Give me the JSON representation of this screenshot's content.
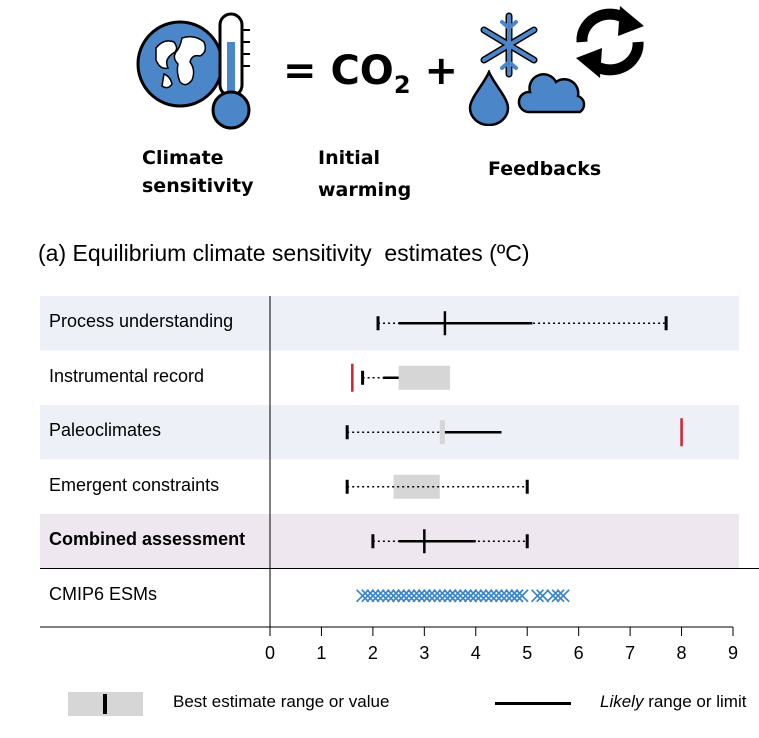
{
  "header": {
    "equals_co2_plus": "= CO",
    "subscript": "2",
    "plus": " +",
    "label_climate": "Climate",
    "label_sensitivity": "sensitivity",
    "label_initial": "Initial",
    "label_warming": "warming",
    "label_feedbacks": "Feedbacks"
  },
  "icons": {
    "globe_thermometer": "globe-thermometer-icon",
    "water_drop": "water-drop-icon",
    "snowflake": "snowflake-icon",
    "cloud": "cloud-icon",
    "cycle_arrows": "cycle-arrows-icon"
  },
  "colors": {
    "accent_blue": "#4a86c8",
    "shaded_row": "#eef0f8",
    "combined_row": "#efe7ef",
    "gray_box": "#d6d6d6",
    "red_mark": "#d22030",
    "cross_blue": "#3a86c9"
  },
  "chart_data": {
    "type": "range-plot",
    "title": "(a) Equilibrium climate sensitivity  estimates (ºC)",
    "xlim": [
      0,
      9
    ],
    "xticks": [
      "0",
      "1",
      "2",
      "3",
      "4",
      "5",
      "6",
      "7",
      "8",
      "9"
    ],
    "rows": [
      {
        "label": "Process understanding",
        "bold": false,
        "very_likely": [
          2.1,
          7.7
        ],
        "likely": [
          2.5,
          5.1
        ],
        "best": 3.4,
        "best_range": null,
        "red_marks": []
      },
      {
        "label": "Instrumental record",
        "bold": false,
        "very_likely": [
          1.8,
          2.5
        ],
        "likely": [
          2.2,
          2.5
        ],
        "best": null,
        "best_range": [
          2.5,
          3.5
        ],
        "red_marks": [
          1.6
        ]
      },
      {
        "label": "Paleoclimates",
        "bold": false,
        "very_likely": [
          1.5,
          3.3
        ],
        "likely": [
          3.4,
          4.5
        ],
        "best": null,
        "best_range": [
          3.3,
          3.4
        ],
        "red_marks": [
          8.0
        ]
      },
      {
        "label": "Emergent constraints",
        "bold": false,
        "very_likely": [
          1.5,
          5.0
        ],
        "likely": null,
        "best": null,
        "best_range": [
          2.4,
          3.3
        ],
        "red_marks": []
      },
      {
        "label": "Combined assessment",
        "bold": true,
        "very_likely": [
          2.0,
          5.0
        ],
        "likely": [
          2.5,
          4.0
        ],
        "best": 3.0,
        "best_range": null,
        "red_marks": []
      },
      {
        "label": "CMIP6 ESMs",
        "bold": false,
        "very_likely": null,
        "likely": null,
        "best": null,
        "best_range": null,
        "red_marks": [],
        "model_values": [
          1.8,
          1.9,
          2.0,
          2.1,
          2.2,
          2.3,
          2.4,
          2.5,
          2.6,
          2.6,
          2.7,
          2.8,
          2.9,
          3.0,
          3.0,
          3.1,
          3.2,
          3.3,
          3.4,
          3.5,
          3.5,
          3.6,
          3.7,
          3.8,
          3.9,
          3.9,
          4.0,
          4.1,
          4.2,
          4.3,
          4.4,
          4.5,
          4.6,
          4.7,
          4.7,
          4.8,
          4.8,
          4.9,
          5.2,
          5.3,
          5.5,
          5.6,
          5.7
        ]
      }
    ],
    "legend": [
      {
        "label": "Best estimate range or value"
      },
      {
        "label_italic": "Likely",
        "label": " range or limit"
      }
    ]
  }
}
